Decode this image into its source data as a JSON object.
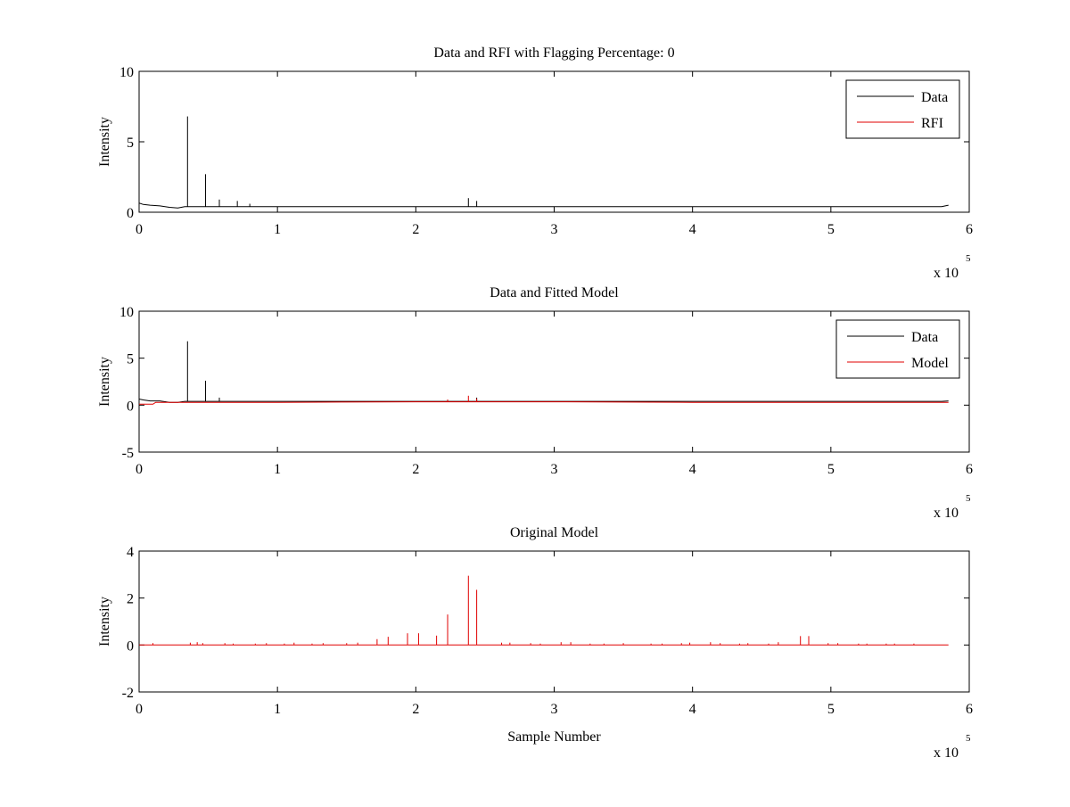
{
  "chart_data": [
    {
      "type": "line",
      "title": "Data and RFI with Flagging Percentage: 0",
      "xlabel": "",
      "ylabel": "Intensity",
      "xlim": [
        0,
        600000
      ],
      "ylim": [
        0,
        10
      ],
      "xticks": [
        0,
        100000,
        200000,
        300000,
        400000,
        500000,
        600000
      ],
      "xtick_labels": [
        "0",
        "1",
        "2",
        "3",
        "4",
        "5",
        "6"
      ],
      "yticks": [
        0,
        5,
        10
      ],
      "ytick_labels": [
        "0",
        "5",
        "10"
      ],
      "x_exponent": {
        "base": "x 10",
        "power": "5"
      },
      "legend": {
        "placement": "top-right",
        "entries": [
          {
            "name": "Data",
            "color": "#000000"
          },
          {
            "name": "RFI",
            "color": "#e00000"
          }
        ]
      },
      "series": [
        {
          "name": "Data",
          "color": "#000000",
          "baseline": 0.4,
          "x": [
            0,
            3000,
            8000,
            15000,
            22000,
            28000,
            33000,
            40000,
            48000,
            58000,
            100000,
            200000,
            300000,
            400000,
            500000,
            580000,
            585000
          ],
          "y": [
            0.65,
            0.55,
            0.5,
            0.45,
            0.35,
            0.3,
            0.4,
            0.4,
            0.4,
            0.4,
            0.4,
            0.4,
            0.4,
            0.4,
            0.4,
            0.4,
            0.5
          ],
          "spikes": [
            {
              "x": 35000,
              "y": 6.8
            },
            {
              "x": 48000,
              "y": 2.7
            },
            {
              "x": 58000,
              "y": 0.9
            },
            {
              "x": 71000,
              "y": 0.8
            },
            {
              "x": 80000,
              "y": 0.6
            },
            {
              "x": 238000,
              "y": 1.0
            },
            {
              "x": 244000,
              "y": 0.8
            }
          ]
        },
        {
          "name": "RFI",
          "color": "#e00000",
          "baseline": 0,
          "x": [],
          "y": [],
          "spikes": []
        }
      ]
    },
    {
      "type": "line",
      "title": "Data and Fitted Model",
      "xlabel": "",
      "ylabel": "Intensity",
      "xlim": [
        0,
        600000
      ],
      "ylim": [
        -5,
        10
      ],
      "xticks": [
        0,
        100000,
        200000,
        300000,
        400000,
        500000,
        600000
      ],
      "xtick_labels": [
        "0",
        "1",
        "2",
        "3",
        "4",
        "5",
        "6"
      ],
      "yticks": [
        -5,
        0,
        5,
        10
      ],
      "ytick_labels": [
        "-5",
        "0",
        "5",
        "10"
      ],
      "x_exponent": {
        "base": "x 10",
        "power": "5"
      },
      "legend": {
        "placement": "top-right",
        "entries": [
          {
            "name": "Data",
            "color": "#000000"
          },
          {
            "name": "Model",
            "color": "#e00000"
          }
        ]
      },
      "series": [
        {
          "name": "Data",
          "color": "#000000",
          "baseline": 0.4,
          "x": [
            0,
            3000,
            8000,
            15000,
            22000,
            28000,
            33000,
            40000,
            100000,
            200000,
            300000,
            400000,
            500000,
            580000,
            585000
          ],
          "y": [
            0.65,
            0.55,
            0.45,
            0.45,
            0.3,
            0.3,
            0.4,
            0.4,
            0.4,
            0.4,
            0.4,
            0.4,
            0.4,
            0.4,
            0.45
          ],
          "spikes": [
            {
              "x": 35000,
              "y": 6.8
            },
            {
              "x": 48000,
              "y": 2.6
            },
            {
              "x": 58000,
              "y": 0.8
            },
            {
              "x": 244000,
              "y": 0.8
            }
          ]
        },
        {
          "name": "Model",
          "color": "#e00000",
          "baseline": 0.35,
          "x": [
            0,
            10000,
            12000,
            30000,
            100000,
            200000,
            300000,
            400000,
            500000,
            585000
          ],
          "y": [
            0.1,
            0.1,
            0.3,
            0.3,
            0.3,
            0.35,
            0.35,
            0.3,
            0.3,
            0.3
          ],
          "spikes": [
            {
              "x": 223000,
              "y": 0.6
            },
            {
              "x": 238000,
              "y": 1.0
            },
            {
              "x": 244000,
              "y": 0.7
            }
          ]
        }
      ]
    },
    {
      "type": "line",
      "title": "Original Model",
      "xlabel": "Sample Number",
      "ylabel": "Intensity",
      "xlim": [
        0,
        600000
      ],
      "ylim": [
        -2,
        4
      ],
      "xticks": [
        0,
        100000,
        200000,
        300000,
        400000,
        500000,
        600000
      ],
      "xtick_labels": [
        "0",
        "1",
        "2",
        "3",
        "4",
        "5",
        "6"
      ],
      "yticks": [
        -2,
        0,
        2,
        4
      ],
      "ytick_labels": [
        "-2",
        "0",
        "2",
        "4"
      ],
      "x_exponent": {
        "base": "x 10",
        "power": "5"
      },
      "series": [
        {
          "name": "",
          "color": "#e00000",
          "baseline": 0,
          "x": [
            0,
            585000
          ],
          "y": [
            0,
            0
          ],
          "spikes": [
            {
              "x": 10000,
              "y": 0.08
            },
            {
              "x": 37000,
              "y": 0.1
            },
            {
              "x": 42000,
              "y": 0.12
            },
            {
              "x": 46000,
              "y": 0.08
            },
            {
              "x": 62000,
              "y": 0.08
            },
            {
              "x": 68000,
              "y": 0.06
            },
            {
              "x": 84000,
              "y": 0.06
            },
            {
              "x": 92000,
              "y": 0.08
            },
            {
              "x": 105000,
              "y": 0.06
            },
            {
              "x": 112000,
              "y": 0.1
            },
            {
              "x": 125000,
              "y": 0.06
            },
            {
              "x": 133000,
              "y": 0.08
            },
            {
              "x": 150000,
              "y": 0.08
            },
            {
              "x": 158000,
              "y": 0.1
            },
            {
              "x": 172000,
              "y": 0.25
            },
            {
              "x": 180000,
              "y": 0.35
            },
            {
              "x": 194000,
              "y": 0.5
            },
            {
              "x": 202000,
              "y": 0.5
            },
            {
              "x": 215000,
              "y": 0.4
            },
            {
              "x": 223000,
              "y": 1.3
            },
            {
              "x": 238000,
              "y": 2.95
            },
            {
              "x": 244000,
              "y": 2.35
            },
            {
              "x": 262000,
              "y": 0.1
            },
            {
              "x": 268000,
              "y": 0.1
            },
            {
              "x": 283000,
              "y": 0.08
            },
            {
              "x": 290000,
              "y": 0.06
            },
            {
              "x": 305000,
              "y": 0.12
            },
            {
              "x": 312000,
              "y": 0.12
            },
            {
              "x": 326000,
              "y": 0.06
            },
            {
              "x": 336000,
              "y": 0.06
            },
            {
              "x": 350000,
              "y": 0.08
            },
            {
              "x": 370000,
              "y": 0.06
            },
            {
              "x": 378000,
              "y": 0.06
            },
            {
              "x": 392000,
              "y": 0.08
            },
            {
              "x": 398000,
              "y": 0.1
            },
            {
              "x": 413000,
              "y": 0.12
            },
            {
              "x": 420000,
              "y": 0.08
            },
            {
              "x": 434000,
              "y": 0.06
            },
            {
              "x": 440000,
              "y": 0.08
            },
            {
              "x": 455000,
              "y": 0.06
            },
            {
              "x": 462000,
              "y": 0.12
            },
            {
              "x": 478000,
              "y": 0.38
            },
            {
              "x": 484000,
              "y": 0.38
            },
            {
              "x": 498000,
              "y": 0.08
            },
            {
              "x": 505000,
              "y": 0.08
            },
            {
              "x": 520000,
              "y": 0.06
            },
            {
              "x": 526000,
              "y": 0.06
            },
            {
              "x": 540000,
              "y": 0.06
            },
            {
              "x": 546000,
              "y": 0.06
            },
            {
              "x": 560000,
              "y": 0.06
            }
          ]
        }
      ]
    }
  ]
}
